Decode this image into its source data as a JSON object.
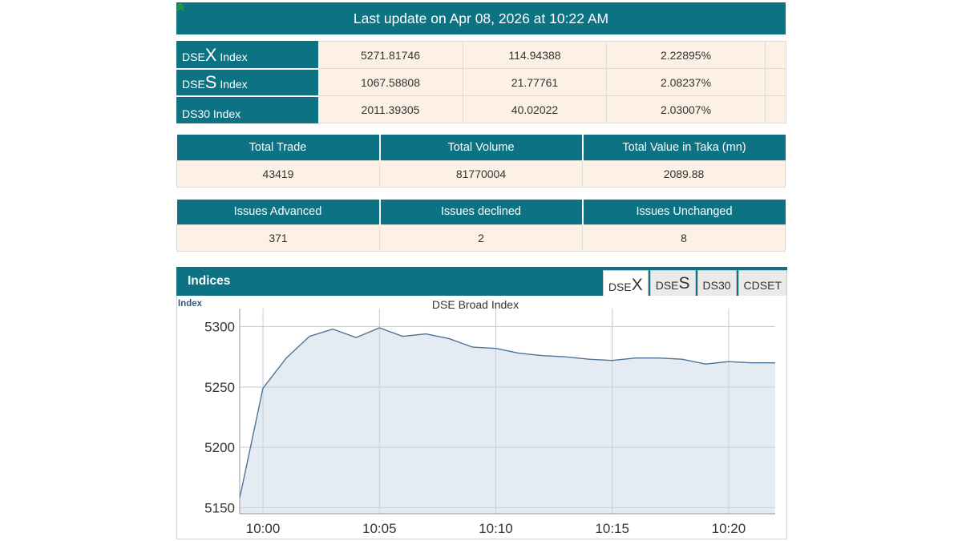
{
  "header": {
    "title": "Last update on Apr 08, 2026 at 10:22 AM"
  },
  "indices": [
    {
      "prefix": "DSE",
      "big": "X",
      "suffix": " Index",
      "value": "5271.81746",
      "change": "114.94388",
      "percent": "2.22895%",
      "direction_icon": "double-up-arrow-icon"
    },
    {
      "prefix": "DSE",
      "big": "S",
      "suffix": " Index",
      "value": "1067.58808",
      "change": "21.77761",
      "percent": "2.08237%",
      "direction_icon": "double-up-arrow-icon"
    },
    {
      "prefix": "DS30 Index",
      "big": "",
      "suffix": "",
      "value": "2011.39305",
      "change": "40.02022",
      "percent": "2.03007%",
      "direction_icon": "double-up-arrow-icon"
    }
  ],
  "trade_summary": {
    "headers": [
      "Total Trade",
      "Total Volume",
      "Total Value in Taka (mn)"
    ],
    "values": [
      "43419",
      "81770004",
      "2089.88"
    ]
  },
  "issues_summary": {
    "headers": [
      "Issues Advanced",
      "Issues declined",
      "Issues Unchanged"
    ],
    "values": [
      "371",
      "2",
      "8"
    ]
  },
  "panel": {
    "title": "Indices",
    "tabs": [
      {
        "prefix": "DSE",
        "big": "X",
        "active": true
      },
      {
        "prefix": "DSE",
        "big": "S",
        "active": false
      },
      {
        "prefix": "DS30",
        "big": "",
        "active": false
      },
      {
        "prefix": "CDSET",
        "big": "",
        "active": false
      }
    ]
  },
  "colors": {
    "brand": "#0e7285",
    "cell_bg": "#fdf1e6",
    "up_arrow": "#2aa02a",
    "area_fill": "#dfe7f0",
    "line": "#4d7399"
  },
  "chart_data": {
    "type": "area",
    "title": "DSE Broad Index",
    "ylabel": "Index",
    "xlabel": "",
    "x_tick_labels": [
      "10:00",
      "10:05",
      "10:10",
      "10:15",
      "10:20"
    ],
    "x_tick_minutes": [
      0,
      5,
      10,
      15,
      20
    ],
    "xlim_minutes": [
      -1,
      22
    ],
    "y_ticks": [
      5150,
      5200,
      5250,
      5300
    ],
    "ylim": [
      5145,
      5307
    ],
    "grid": true,
    "legend": "none",
    "series": [
      {
        "x_minutes": [
          -1,
          0,
          1,
          2,
          3,
          4,
          5,
          6,
          7,
          8,
          9,
          10,
          11,
          12,
          13,
          14,
          15,
          16,
          17,
          18,
          19,
          20,
          21,
          22
        ],
        "values": [
          5158,
          5249,
          5274,
          5292,
          5298,
          5291,
          5299,
          5292,
          5294,
          5290,
          5283,
          5282,
          5278,
          5276,
          5275,
          5273,
          5272,
          5274,
          5274,
          5273,
          5269,
          5271,
          5270,
          5270
        ]
      }
    ]
  }
}
